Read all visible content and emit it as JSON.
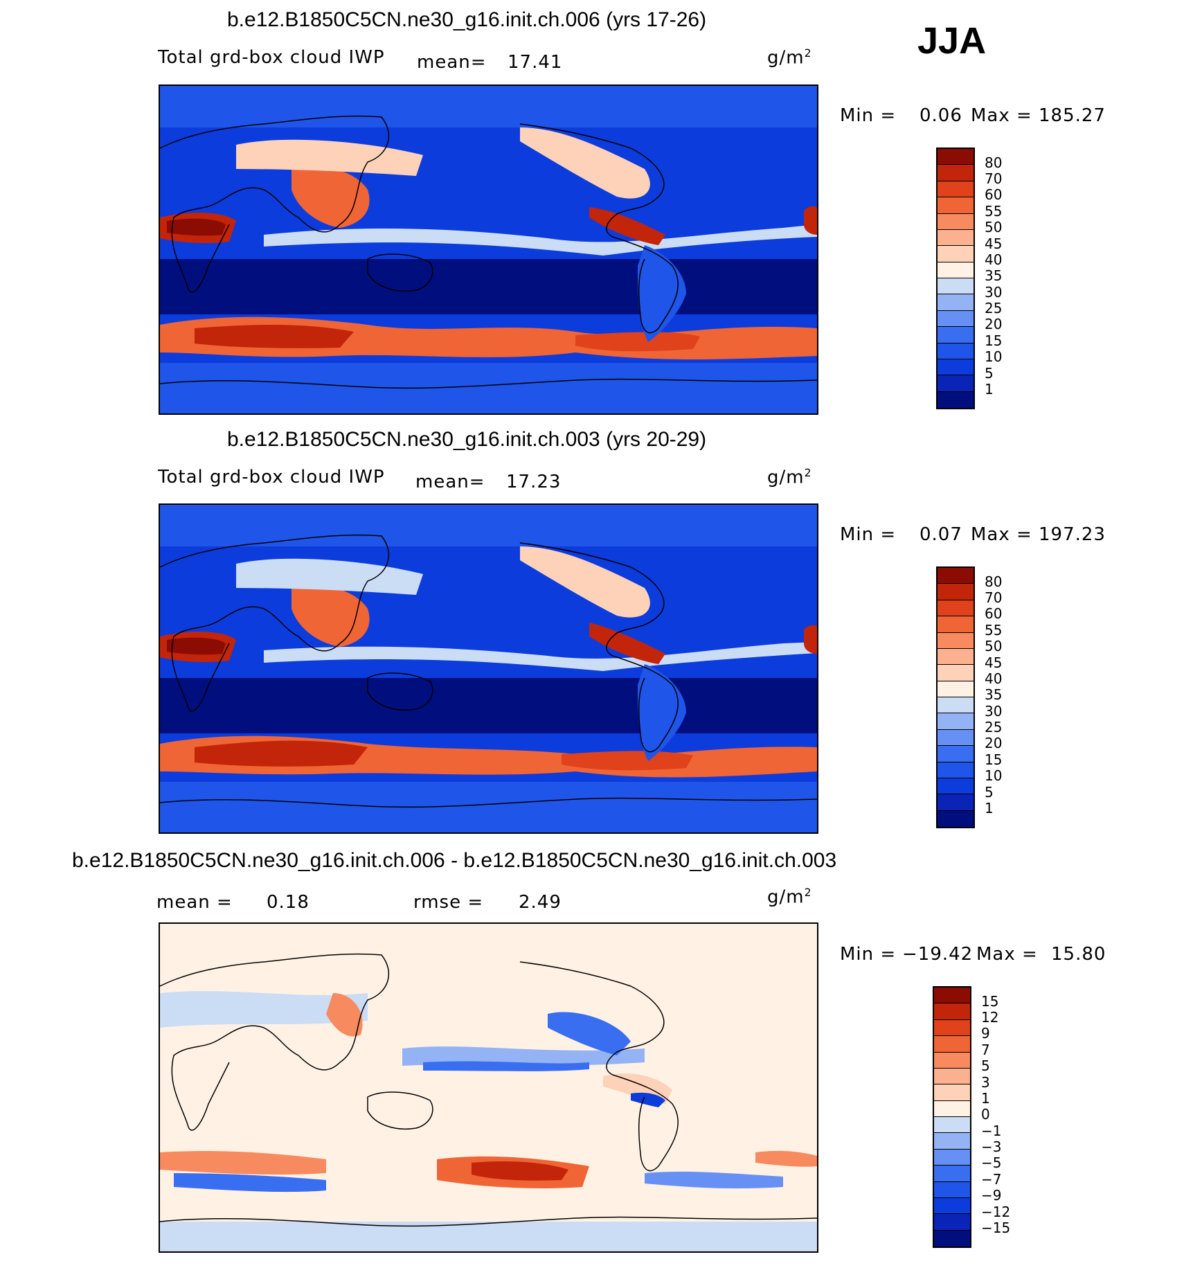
{
  "season": "JJA",
  "panels": [
    {
      "title": "b.e12.B1850C5CN.ne30_g16.init.ch.006 (yrs 17-26)",
      "left_label": "Total grd-box cloud IWP",
      "stat1_label": "mean=",
      "stat1_value": "17.41",
      "units": "g/m",
      "units_sup": "2",
      "min_label": "Min =",
      "min_value": "0.06",
      "max_label": "Max =",
      "max_value": "185.27"
    },
    {
      "title": "b.e12.B1850C5CN.ne30_g16.init.ch.003 (yrs 20-29)",
      "left_label": "Total grd-box cloud IWP",
      "stat1_label": "mean=",
      "stat1_value": "17.23",
      "units": "g/m",
      "units_sup": "2",
      "min_label": "Min =",
      "min_value": "0.07",
      "max_label": "Max =",
      "max_value": "197.23"
    },
    {
      "title": "b.e12.B1850C5CN.ne30_g16.init.ch.006 - b.e12.B1850C5CN.ne30_g16.init.ch.003",
      "mean_label": "mean =",
      "mean_value": "0.18",
      "rmse_label": "rmse =",
      "rmse_value": "2.49",
      "units": "g/m",
      "units_sup": "2",
      "min_label": "Min =",
      "min_value": "−19.42",
      "max_label": "Max =",
      "max_value": "15.80"
    }
  ],
  "chart_data": [
    {
      "type": "heatmap",
      "title": "b.e12.B1850C5CN.ne30_g16.init.ch.006 (yrs 17-26)",
      "variable": "Total grd-box cloud IWP",
      "units": "g/m2",
      "season": "JJA",
      "mean": 17.41,
      "min": 0.06,
      "max": 185.27,
      "colorbar_levels": [
        1,
        5,
        10,
        15,
        20,
        25,
        30,
        35,
        40,
        45,
        50,
        55,
        60,
        70,
        80
      ],
      "colorbar_colors": [
        "#000f7d",
        "#0a24b8",
        "#0d3cdc",
        "#1f55e8",
        "#3a6ef0",
        "#6690f3",
        "#94b3f5",
        "#cbdcf5",
        "#fff2e5",
        "#fdd2b8",
        "#fbb08f",
        "#f78a5f",
        "#ef6535",
        "#e0421c",
        "#c22509",
        "#8b0c02"
      ],
      "colorbar_labels": [
        "1",
        "5",
        "10",
        "15",
        "20",
        "25",
        "30",
        "35",
        "40",
        "45",
        "50",
        "55",
        "60",
        "70",
        "80"
      ]
    },
    {
      "type": "heatmap",
      "title": "b.e12.B1850C5CN.ne30_g16.init.ch.003 (yrs 20-29)",
      "variable": "Total grd-box cloud IWP",
      "units": "g/m2",
      "season": "JJA",
      "mean": 17.23,
      "min": 0.07,
      "max": 197.23,
      "colorbar_levels": [
        1,
        5,
        10,
        15,
        20,
        25,
        30,
        35,
        40,
        45,
        50,
        55,
        60,
        70,
        80
      ],
      "colorbar_colors": [
        "#000f7d",
        "#0a24b8",
        "#0d3cdc",
        "#1f55e8",
        "#3a6ef0",
        "#6690f3",
        "#94b3f5",
        "#cbdcf5",
        "#fff2e5",
        "#fdd2b8",
        "#fbb08f",
        "#f78a5f",
        "#ef6535",
        "#e0421c",
        "#c22509",
        "#8b0c02"
      ],
      "colorbar_labels": [
        "1",
        "5",
        "10",
        "15",
        "20",
        "25",
        "30",
        "35",
        "40",
        "45",
        "50",
        "55",
        "60",
        "70",
        "80"
      ]
    },
    {
      "type": "heatmap",
      "title": "b.e12.B1850C5CN.ne30_g16.init.ch.006 - b.e12.B1850C5CN.ne30_g16.init.ch.003",
      "units": "g/m2",
      "mean": 0.18,
      "rmse": 2.49,
      "min": -19.42,
      "max": 15.8,
      "colorbar_levels": [
        -15,
        -12,
        -9,
        -7,
        -5,
        -3,
        -1,
        0,
        1,
        3,
        5,
        7,
        9,
        12,
        15
      ],
      "colorbar_colors": [
        "#000f7d",
        "#0a24b8",
        "#0d3cdc",
        "#1f55e8",
        "#3a6ef0",
        "#6690f3",
        "#94b3f5",
        "#cbdcf5",
        "#fff2e5",
        "#fdd2b8",
        "#fbb08f",
        "#f78a5f",
        "#ef6535",
        "#e0421c",
        "#c22509",
        "#8b0c02"
      ],
      "colorbar_labels": [
        "−15",
        "−12",
        "−9",
        "−7",
        "−5",
        "−3",
        "−1",
        "0",
        "1",
        "3",
        "5",
        "7",
        "9",
        "12",
        "15"
      ]
    }
  ]
}
